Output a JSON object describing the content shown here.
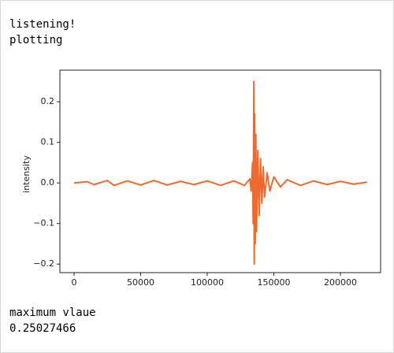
{
  "output_lines": [
    "listening!",
    "plotting"
  ],
  "chart_data": {
    "type": "line",
    "ylabel": "intensity",
    "x": [
      0,
      10000,
      15000,
      25000,
      30000,
      40000,
      50000,
      60000,
      70000,
      80000,
      90000,
      100000,
      110000,
      120000,
      128000,
      132000,
      133000,
      134000,
      134500,
      135000,
      135300,
      135600,
      136000,
      136500,
      137000,
      138000,
      139000,
      140000,
      141000,
      142000,
      143000,
      145000,
      147000,
      150000,
      155000,
      160000,
      170000,
      180000,
      190000,
      200000,
      210000,
      220000
    ],
    "series": [
      {
        "name": "intensity",
        "color": "#ee6a2c",
        "values": [
          0,
          0.003,
          -0.004,
          0.006,
          -0.006,
          0.005,
          -0.005,
          0.006,
          -0.005,
          0.004,
          -0.004,
          0.005,
          -0.006,
          0.005,
          -0.006,
          0.01,
          -0.02,
          0.05,
          -0.1,
          0.25,
          -0.2,
          0.17,
          -0.15,
          0.12,
          -0.12,
          0.08,
          -0.08,
          0.06,
          -0.05,
          0.04,
          -0.035,
          0.025,
          -0.02,
          0.015,
          -0.01,
          0.008,
          -0.006,
          0.005,
          -0.004,
          0.004,
          -0.003,
          0.002
        ]
      }
    ],
    "xlim": [
      -10650,
      230180
    ],
    "ylim": [
      -0.221,
      0.278
    ],
    "xticks": [
      0,
      50000,
      100000,
      150000,
      200000
    ],
    "yticks": [
      {
        "value": -0.2,
        "label": "−0.2"
      },
      {
        "value": -0.1,
        "label": "−0.1"
      },
      {
        "value": 0,
        "label": "0.0"
      },
      {
        "value": 0.1,
        "label": "0.1"
      },
      {
        "value": 0.2,
        "label": "0.2"
      }
    ]
  },
  "result": {
    "label": "maximum vlaue",
    "value": 0.25027466
  }
}
